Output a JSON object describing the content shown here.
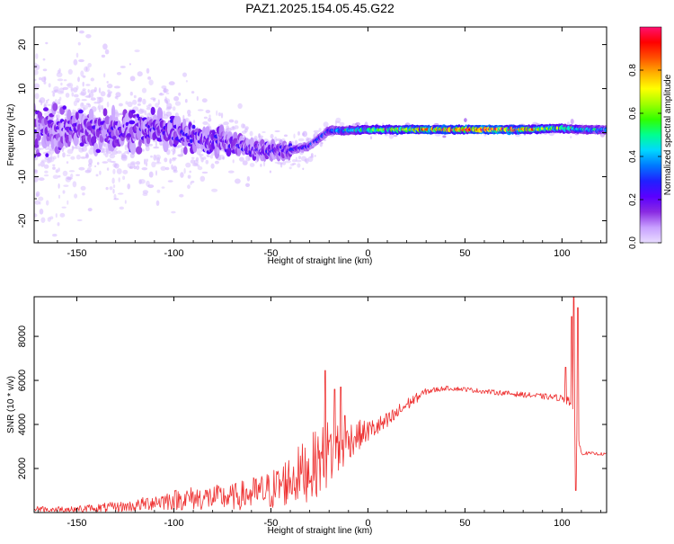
{
  "title": "PAZ1.2025.154.05.45.G22",
  "chart_data": [
    {
      "type": "heatmap",
      "xlabel": "Height of straight line (km)",
      "ylabel": "Frequency (Hz)",
      "xlim": [
        -172,
        123
      ],
      "ylim": [
        -25,
        24
      ],
      "x_ticks": [
        -150,
        -100,
        -50,
        0,
        50,
        100
      ],
      "y_ticks": [
        -20,
        -10,
        0,
        10,
        20
      ],
      "colorbar": {
        "label": "Normalized spectral amplitude",
        "range": [
          0,
          1
        ],
        "ticks": [
          0.0,
          0.2,
          0.4,
          0.6,
          0.8
        ],
        "colormap": [
          "#e8dcff",
          "#c8a0ff",
          "#8a2be2",
          "#5a00ff",
          "#2020ff",
          "#0078ff",
          "#00d8ff",
          "#00ff90",
          "#30ff00",
          "#a0ff00",
          "#ffff00",
          "#ffb000",
          "#ff5000",
          "#ff0000",
          "#ff1070"
        ]
      },
      "band": [
        {
          "x": -170,
          "freq": 0.5,
          "amp": 0.18,
          "spread": 14
        },
        {
          "x": -150,
          "freq": 1.0,
          "amp": 0.2,
          "spread": 12
        },
        {
          "x": -130,
          "freq": 0.0,
          "amp": 0.2,
          "spread": 11
        },
        {
          "x": -110,
          "freq": 1.0,
          "amp": 0.22,
          "spread": 9
        },
        {
          "x": -90,
          "freq": -1.0,
          "amp": 0.22,
          "spread": 7
        },
        {
          "x": -70,
          "freq": -2.5,
          "amp": 0.23,
          "spread": 5
        },
        {
          "x": -55,
          "freq": -4.0,
          "amp": 0.22,
          "spread": 4
        },
        {
          "x": -40,
          "freq": -4.0,
          "amp": 0.25,
          "spread": 3
        },
        {
          "x": -30,
          "freq": -3.0,
          "amp": 0.28,
          "spread": 3
        },
        {
          "x": -20,
          "freq": 0.5,
          "amp": 0.35,
          "spread": 2
        },
        {
          "x": -10,
          "freq": 0.5,
          "amp": 0.5,
          "spread": 1.5
        },
        {
          "x": 0,
          "freq": 0.7,
          "amp": 0.6,
          "spread": 1.2
        },
        {
          "x": 20,
          "freq": 0.7,
          "amp": 0.75,
          "spread": 1
        },
        {
          "x": 40,
          "freq": 0.7,
          "amp": 0.9,
          "spread": 1
        },
        {
          "x": 60,
          "freq": 0.7,
          "amp": 1.0,
          "spread": 1
        },
        {
          "x": 80,
          "freq": 0.7,
          "amp": 0.85,
          "spread": 1
        },
        {
          "x": 100,
          "freq": 1.0,
          "amp": 0.6,
          "spread": 1.5
        },
        {
          "x": 110,
          "freq": 0.7,
          "amp": 0.5,
          "spread": 1
        },
        {
          "x": 123,
          "freq": 0.7,
          "amp": 0.4,
          "spread": 1
        }
      ]
    },
    {
      "type": "line",
      "xlabel": "Height of straight line (km)",
      "ylabel": "SNR (10 * v/v)",
      "xlim": [
        -172,
        123
      ],
      "ylim": [
        0,
        9800
      ],
      "x_ticks": [
        -150,
        -100,
        -50,
        0,
        50,
        100
      ],
      "y_ticks": [
        2000,
        4000,
        6000,
        8000
      ],
      "color": "#ee3030",
      "envelope": [
        {
          "x": -172,
          "mean": 120,
          "noise": 160
        },
        {
          "x": -150,
          "mean": 150,
          "noise": 180
        },
        {
          "x": -120,
          "mean": 300,
          "noise": 260
        },
        {
          "x": -110,
          "mean": 500,
          "noise": 400
        },
        {
          "x": -90,
          "mean": 650,
          "noise": 550
        },
        {
          "x": -70,
          "mean": 700,
          "noise": 600
        },
        {
          "x": -50,
          "mean": 1000,
          "noise": 900
        },
        {
          "x": -40,
          "mean": 1500,
          "noise": 1200
        },
        {
          "x": -30,
          "mean": 2000,
          "noise": 1500
        },
        {
          "x": -20,
          "mean": 2700,
          "noise": 1600
        },
        {
          "x": -15,
          "mean": 2900,
          "noise": 1400
        },
        {
          "x": -10,
          "mean": 3300,
          "noise": 900
        },
        {
          "x": 0,
          "mean": 3700,
          "noise": 500
        },
        {
          "x": 10,
          "mean": 4100,
          "noise": 450
        },
        {
          "x": 20,
          "mean": 4900,
          "noise": 300
        },
        {
          "x": 30,
          "mean": 5500,
          "noise": 150
        },
        {
          "x": 40,
          "mean": 5650,
          "noise": 100
        },
        {
          "x": 50,
          "mean": 5600,
          "noise": 100
        },
        {
          "x": 60,
          "mean": 5500,
          "noise": 110
        },
        {
          "x": 80,
          "mean": 5350,
          "noise": 120
        },
        {
          "x": 100,
          "mean": 5200,
          "noise": 150
        },
        {
          "x": 104,
          "mean": 5100,
          "noise": 300
        },
        {
          "x": 110,
          "mean": 2700,
          "noise": 80
        },
        {
          "x": 123,
          "mean": 2650,
          "noise": 60
        }
      ],
      "spikes": [
        {
          "x": -22,
          "y": 6450
        },
        {
          "x": -17,
          "y": 5600
        },
        {
          "x": -14,
          "y": 5700
        },
        {
          "x": -12,
          "y": 4400
        },
        {
          "x": 102,
          "y": 6600
        },
        {
          "x": 105,
          "y": 8900
        },
        {
          "x": 106,
          "y": 9800
        },
        {
          "x": 107,
          "y": 1000
        },
        {
          "x": 108,
          "y": 9300
        }
      ]
    }
  ]
}
